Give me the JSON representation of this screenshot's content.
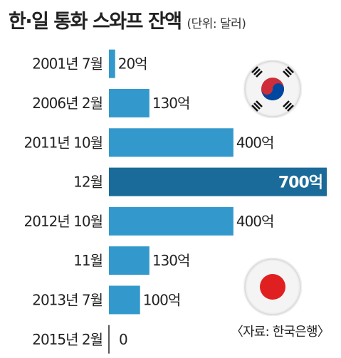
{
  "header": {
    "title": "한·일 통화 스와프 잔액",
    "unit": "(단위: 달러)"
  },
  "source": "〈자료: 한국은행〉",
  "colors": {
    "bar": "#3399cc",
    "highlight": "#1a6b9a",
    "axis": "#222222"
  },
  "icons": [
    "korea-flag-icon",
    "japan-flag-icon"
  ],
  "chart_data": {
    "type": "bar",
    "orientation": "horizontal",
    "title": "한·일 통화 스와프 잔액",
    "unit": "(단위: 달러)",
    "categories": [
      "2001년 7월",
      "2006년 2월",
      "2011년 10월",
      "12월",
      "2012년 10월",
      "11월",
      "2013년 7월",
      "2015년 2월"
    ],
    "values": [
      20,
      130,
      400,
      700,
      400,
      130,
      100,
      0
    ],
    "value_labels": [
      "20억",
      "130억",
      "400억",
      "700억",
      "400억",
      "130억",
      "100억",
      "0"
    ],
    "highlight_index": 3,
    "xlim": [
      0,
      700
    ],
    "grid": false,
    "legend": "none"
  }
}
